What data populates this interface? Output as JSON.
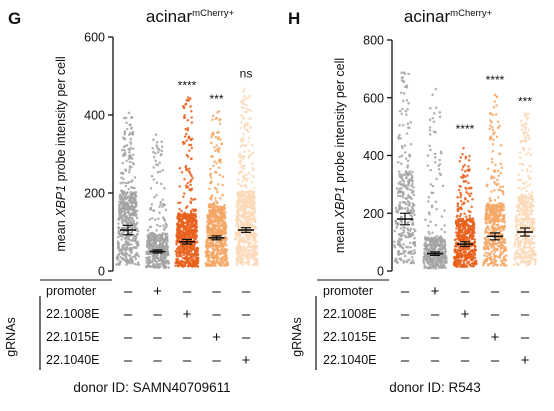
{
  "chart_data": [
    {
      "type": "scatter",
      "panel": "G",
      "title": "acinar",
      "title_superscript": "mCherry+",
      "ylabel_prefix": "mean ",
      "ylabel_italic": "XBP1",
      "ylabel_suffix": " probe intensity per cell",
      "ylim": [
        0,
        600
      ],
      "yticks": [
        "0",
        "200",
        "400",
        "600"
      ],
      "ytick_values": [
        0,
        200,
        400,
        600
      ],
      "series": [
        {
          "mean": 105,
          "sem": 12,
          "max": 410,
          "n": 520,
          "color": "#a3a3a3",
          "mean_color": "#111111",
          "significance": ""
        },
        {
          "mean": 50,
          "sem": 4,
          "max": 350,
          "n": 420,
          "color": "#a3a3a3",
          "mean_color": "#111111",
          "significance": ""
        },
        {
          "mean": 75,
          "sem": 6,
          "max": 445,
          "n": 700,
          "color": "#e8601c",
          "mean_color": "#111111",
          "significance": "****"
        },
        {
          "mean": 85,
          "sem": 5,
          "max": 410,
          "n": 650,
          "color": "#f4a765",
          "mean_color": "#111111",
          "significance": "***"
        },
        {
          "mean": 105,
          "sem": 6,
          "max": 470,
          "n": 700,
          "color": "#fcd9b8",
          "mean_color": "#111111",
          "significance": "ns"
        }
      ],
      "conditions": [
        {
          "label": "promoter",
          "values": [
            "–",
            "+",
            "–",
            "–",
            "–"
          ]
        },
        {
          "label": "22.1008E",
          "values": [
            "–",
            "–",
            "+",
            "–",
            "–"
          ]
        },
        {
          "label": "22.1015E",
          "values": [
            "–",
            "–",
            "–",
            "+",
            "–"
          ]
        },
        {
          "label": "22.1040E",
          "values": [
            "–",
            "–",
            "–",
            "–",
            "+"
          ]
        }
      ],
      "group_label": "gRNAs",
      "donor": "donor ID: SAMN40709611"
    },
    {
      "type": "scatter",
      "panel": "H",
      "title": "acinar",
      "title_superscript": "mCherry+",
      "ylabel_prefix": "mean ",
      "ylabel_italic": "XBP1",
      "ylabel_suffix": " probe intensity per cell",
      "ylim": [
        0,
        800
      ],
      "yticks": [
        "0",
        "200",
        "400",
        "600",
        "800"
      ],
      "ytick_values": [
        0,
        200,
        400,
        600,
        800
      ],
      "series": [
        {
          "mean": 180,
          "sem": 20,
          "max": 690,
          "n": 300,
          "color": "#a3a3a3",
          "mean_color": "#111111",
          "significance": ""
        },
        {
          "mean": 60,
          "sem": 6,
          "max": 700,
          "n": 380,
          "color": "#a3a3a3",
          "mean_color": "#111111",
          "significance": ""
        },
        {
          "mean": 93,
          "sem": 8,
          "max": 450,
          "n": 520,
          "color": "#e8601c",
          "mean_color": "#111111",
          "significance": "****"
        },
        {
          "mean": 120,
          "sem": 12,
          "max": 620,
          "n": 450,
          "color": "#f4a765",
          "mean_color": "#111111",
          "significance": "****"
        },
        {
          "mean": 135,
          "sem": 14,
          "max": 545,
          "n": 450,
          "color": "#fcd9b8",
          "mean_color": "#111111",
          "significance": "***"
        }
      ],
      "conditions": [
        {
          "label": "promoter",
          "values": [
            "–",
            "+",
            "–",
            "–",
            "–"
          ]
        },
        {
          "label": "22.1008E",
          "values": [
            "–",
            "–",
            "+",
            "–",
            "–"
          ]
        },
        {
          "label": "22.1015E",
          "values": [
            "–",
            "–",
            "–",
            "+",
            "–"
          ]
        },
        {
          "label": "22.1040E",
          "values": [
            "–",
            "–",
            "–",
            "–",
            "+"
          ]
        }
      ],
      "group_label": "gRNAs",
      "donor": "donor ID: R543"
    }
  ]
}
